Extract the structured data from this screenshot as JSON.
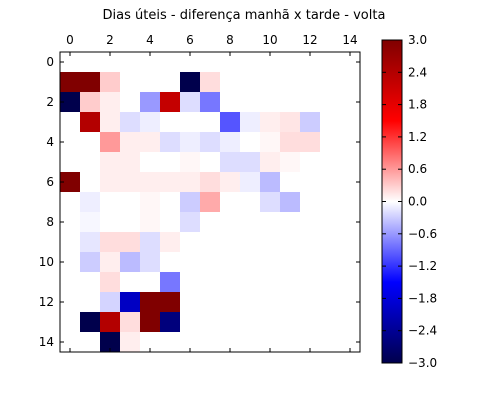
{
  "chart_data": {
    "type": "heatmap",
    "title": "Dias úteis - diferença manhã x tarde - volta",
    "xlabel": "",
    "ylabel": "",
    "x_ticks": [
      "0",
      "2",
      "4",
      "6",
      "8",
      "10",
      "12",
      "14"
    ],
    "y_ticks": [
      "0",
      "2",
      "4",
      "6",
      "8",
      "10",
      "12",
      "14"
    ],
    "xlim": [
      -0.5,
      14.5
    ],
    "ylim": [
      14.5,
      -0.5
    ],
    "x_axis_position": "top",
    "colormap": "seismic",
    "vmin": -3.0,
    "vmax": 3.0,
    "colorbar_ticks": [
      "3.0",
      "2.4",
      "1.8",
      "1.2",
      "0.6",
      "0.0",
      "-0.6",
      "-1.2",
      "-1.8",
      "-2.4",
      "-3.0"
    ],
    "grid": false,
    "values": [
      [
        0,
        0,
        0,
        0,
        0,
        0,
        0,
        0,
        0,
        0,
        0,
        0,
        0,
        0,
        0
      ],
      [
        3,
        3,
        0.3,
        0,
        0,
        0,
        -3,
        0.2,
        0,
        0,
        0,
        0,
        0,
        0,
        0
      ],
      [
        -3,
        0.3,
        0.1,
        0,
        -0.6,
        2.2,
        -0.2,
        -0.8,
        0,
        0,
        0,
        0,
        0,
        0,
        0
      ],
      [
        0,
        2.4,
        0.1,
        -0.2,
        -0.1,
        0,
        0,
        0,
        -1.0,
        -0.1,
        0.1,
        0.15,
        -0.3,
        0,
        0
      ],
      [
        0,
        0,
        0.6,
        0.1,
        0.1,
        -0.2,
        -0.1,
        -0.2,
        -0.1,
        0,
        0.05,
        0.2,
        0.2,
        0,
        0
      ],
      [
        0,
        0,
        0.1,
        0.1,
        0,
        0,
        0.05,
        0,
        -0.2,
        -0.2,
        0.1,
        0.05,
        0,
        0,
        0
      ],
      [
        3,
        0,
        0.1,
        0.1,
        0.1,
        0.1,
        0.1,
        0.2,
        0.1,
        -0.1,
        -0.4,
        0,
        0,
        0,
        0
      ],
      [
        0,
        -0.1,
        0,
        0,
        0.05,
        0,
        -0.3,
        0.5,
        0,
        0,
        -0.2,
        -0.4,
        0,
        0,
        0
      ],
      [
        0,
        -0.05,
        0,
        0,
        0.05,
        0,
        -0.2,
        0,
        0,
        0,
        0,
        0,
        0,
        0,
        0
      ],
      [
        0,
        -0.15,
        0.2,
        0.2,
        -0.2,
        0.1,
        0,
        0,
        0,
        0,
        0,
        0,
        0,
        0,
        0
      ],
      [
        0,
        -0.3,
        0.1,
        -0.4,
        -0.2,
        0,
        0,
        0,
        0,
        0,
        0,
        0,
        0,
        0,
        0
      ],
      [
        0,
        0,
        0.2,
        0,
        0,
        -0.8,
        0,
        0,
        0,
        0,
        0,
        0,
        0,
        0,
        0
      ],
      [
        0,
        0,
        -0.25,
        -2.0,
        3,
        3,
        0,
        0,
        0,
        0,
        0,
        0,
        0,
        0,
        0
      ],
      [
        0,
        -3,
        2.4,
        0.2,
        3,
        -2.6,
        0,
        0,
        0,
        0,
        0,
        0,
        0,
        0,
        0
      ],
      [
        0,
        0,
        -3,
        0.1,
        0,
        0,
        0,
        0,
        0,
        0,
        0,
        0,
        0,
        0,
        0
      ]
    ]
  }
}
